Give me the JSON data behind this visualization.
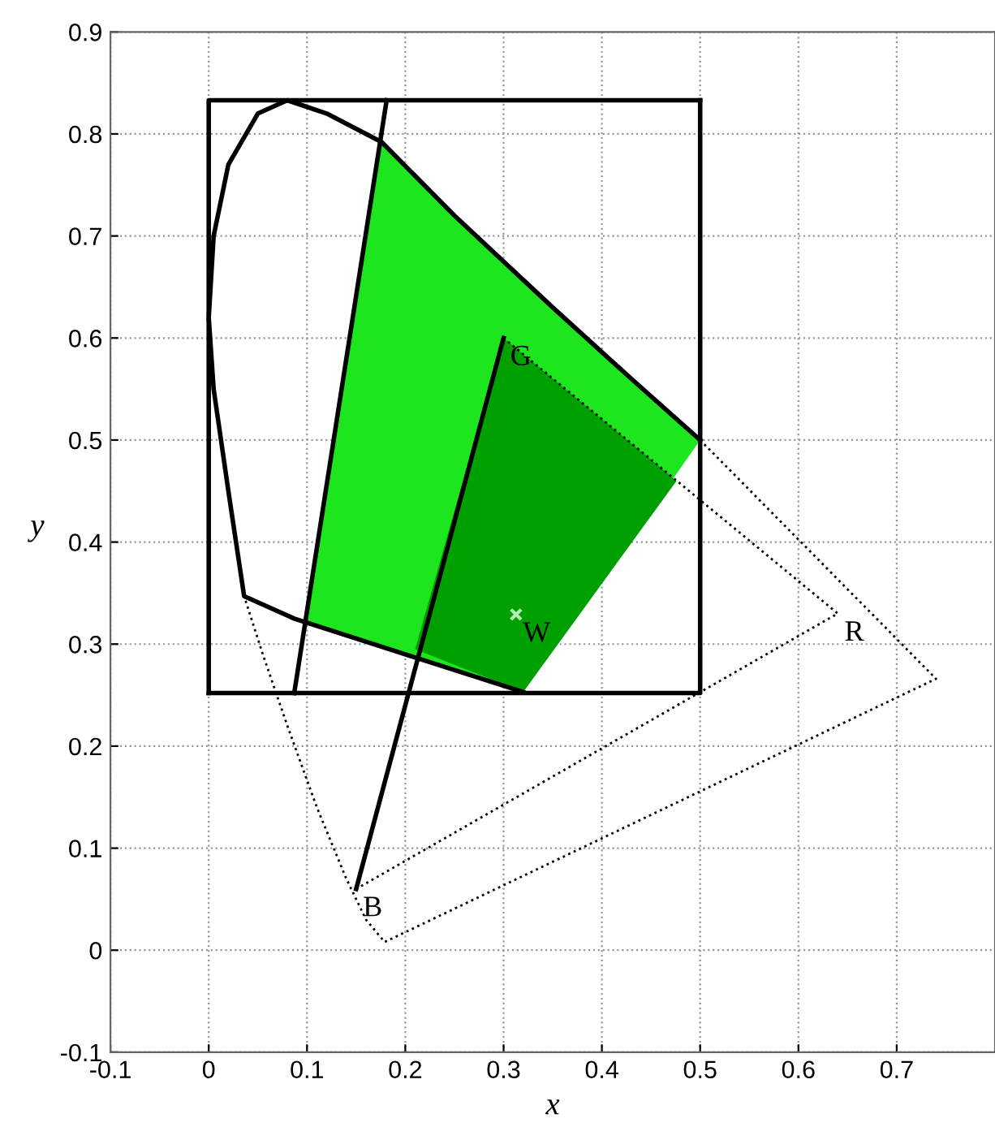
{
  "chart_data": {
    "type": "line",
    "xlabel": "x",
    "ylabel": "y",
    "xlim": [
      -0.1,
      0.8
    ],
    "ylim": [
      -0.1,
      0.9
    ],
    "xticks": [
      -0.1,
      0,
      0.1,
      0.2,
      0.3,
      0.4,
      0.5,
      0.6,
      0.7
    ],
    "yticks": [
      -0.1,
      0,
      0.1,
      0.2,
      0.3,
      0.4,
      0.5,
      0.6,
      0.7,
      0.8,
      0.9
    ],
    "grid": true,
    "legend": false,
    "series": [
      {
        "color": "#000000",
        "line_style": "dotted",
        "x": [
          0.5,
          0.74,
          0.179,
          0.16,
          0.14,
          0.11,
          0.08,
          0.055,
          0.036
        ],
        "values": [
          0.5,
          0.266,
          0.008,
          0.03,
          0.07,
          0.14,
          0.22,
          0.29,
          0.347
        ]
      },
      {
        "color": "#000000",
        "line_style": "solid",
        "x": [
          0.5,
          0.43,
          0.35,
          0.25,
          0.176,
          0.12,
          0.08,
          0.05,
          0.02,
          0.005,
          0.0,
          0.005,
          0.02,
          0.036,
          0.087,
          0.2,
          0.32
        ],
        "values": [
          0.5,
          0.56,
          0.63,
          0.72,
          0.792,
          0.82,
          0.833,
          0.82,
          0.77,
          0.7,
          0.62,
          0.55,
          0.45,
          0.347,
          0.325,
          0.29,
          0.253
        ]
      },
      {
        "color": "#000000",
        "line_style": "solid",
        "x": [
          0.087,
          0.181
        ],
        "values": [
          0.252,
          0.833
        ]
      },
      {
        "type": "line",
        "color": "#000000",
        "line_style": "solid",
        "x": [
          0,
          0.5,
          0.5
        ],
        "values": [
          0.252,
          0.252,
          0.833
        ]
      },
      {
        "type": "line",
        "color": "#000000",
        "line_style": "solid",
        "x": [
          0.5,
          0,
          0
        ],
        "values": [
          0.833,
          0.833,
          0.252
        ]
      },
      {
        "color": "#000000",
        "line_style": "solid",
        "x": [
          0.15,
          0.3
        ],
        "values": [
          0.06,
          0.6
        ]
      },
      {
        "color": "#000000",
        "line_style": "dotted",
        "x": [
          0.3,
          0.64,
          0.15
        ],
        "values": [
          0.6,
          0.33,
          0.06
        ]
      },
      {
        "type": "area",
        "color": "#1ee61e",
        "x": [
          0.098,
          0.176,
          0.25,
          0.35,
          0.43,
          0.5,
          0.32
        ],
        "values": [
          0.322,
          0.792,
          0.72,
          0.63,
          0.56,
          0.5,
          0.253
        ]
      },
      {
        "type": "area",
        "color": "#00a000",
        "x": [
          0.3,
          0.476,
          0.32,
          0.21
        ],
        "values": [
          0.6,
          0.46,
          0.253,
          0.295
        ]
      },
      {
        "type": "scatter",
        "color": "#b0f0b0",
        "marker": "cross",
        "x": [
          0.3127
        ],
        "values": [
          0.329
        ]
      }
    ],
    "annotations": [
      {
        "text": "G",
        "x": 0.3,
        "y": 0.6
      },
      {
        "text": "R",
        "x": 0.64,
        "y": 0.33
      },
      {
        "text": "B",
        "x": 0.15,
        "y": 0.06
      },
      {
        "text": "W",
        "x": 0.3127,
        "y": 0.329
      }
    ]
  }
}
